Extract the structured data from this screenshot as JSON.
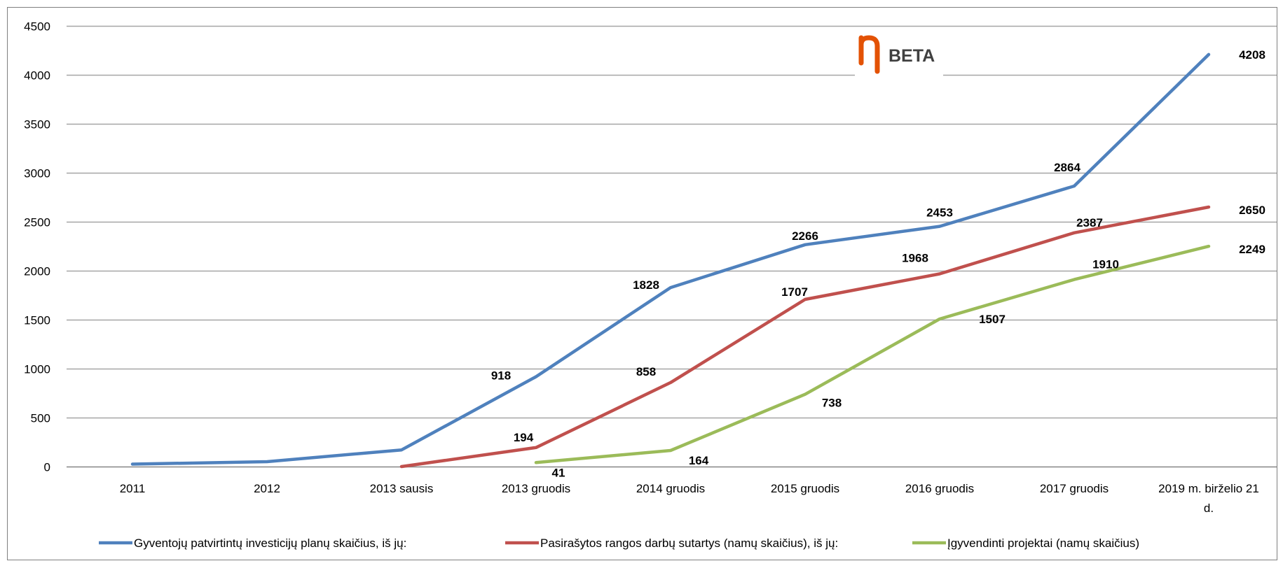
{
  "logo": {
    "text": "BETA",
    "color": "#e35205"
  },
  "chart_data": {
    "type": "line",
    "title": "",
    "xlabel": "",
    "ylabel": "",
    "ylim": [
      0,
      4500
    ],
    "yticks": [
      0,
      500,
      1000,
      1500,
      2000,
      2500,
      3000,
      3500,
      4000,
      4500
    ],
    "grid": true,
    "legend_position": "bottom",
    "categories": [
      "2011",
      "2012",
      "2013 sausis",
      "2013 gruodis",
      "2014 gruodis",
      "2015 gruodis",
      "2016 gruodis",
      "2017 gruodis",
      "2019 m. birželio 21 d."
    ],
    "series": [
      {
        "name": "Gyventojų patvirtintų investicijų planų skaičius, iš jų:",
        "color": "#4f81bd",
        "values": [
          25,
          50,
          170,
          918,
          1828,
          2266,
          2453,
          2864,
          4208
        ],
        "labels": [
          null,
          null,
          null,
          "918",
          "1828",
          "2266",
          "2453",
          "2864",
          "4208"
        ]
      },
      {
        "name": "Pasirašytos rangos darbų sutartys (namų skaičius), iš jų:",
        "color": "#c0504d",
        "values": [
          null,
          null,
          0,
          194,
          858,
          1707,
          1968,
          2387,
          2650
        ],
        "labels": [
          null,
          null,
          null,
          "194",
          "858",
          "1707",
          "1968",
          "2387",
          "2650"
        ]
      },
      {
        "name": "Įgyvendinti projektai (namų skaičius)",
        "color": "#9bbb59",
        "values": [
          null,
          null,
          null,
          41,
          164,
          738,
          1507,
          1910,
          2249
        ],
        "labels": [
          null,
          null,
          null,
          "41",
          "164",
          "738",
          "1507",
          "1910",
          "2249"
        ]
      }
    ]
  }
}
